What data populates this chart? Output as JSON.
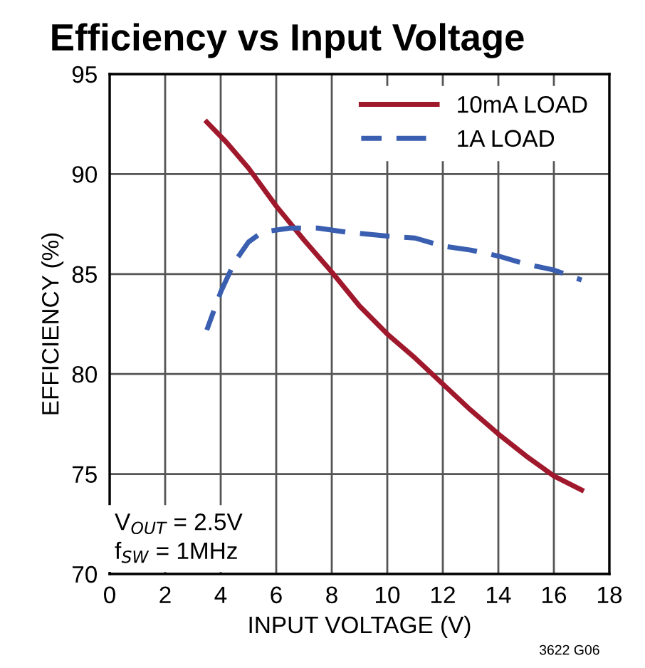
{
  "chart_data": {
    "type": "line",
    "title": "Efficiency vs Input Voltage",
    "xlabel": "INPUT VOLTAGE (V)",
    "ylabel": "EFFICIENCY (%)",
    "xlim": [
      0,
      18
    ],
    "xticks": [
      0,
      2,
      4,
      6,
      8,
      10,
      12,
      14,
      16,
      18
    ],
    "ylim": [
      70,
      95
    ],
    "yticks": [
      70,
      75,
      80,
      85,
      90,
      95
    ],
    "grid": true,
    "legend": "top right",
    "series": [
      {
        "name": "10mA LOAD",
        "color": "#a0182c",
        "line_style": "solid",
        "x": [
          3.5,
          4.2,
          5.0,
          6.0,
          7.0,
          8.0,
          9.0,
          10.0,
          11.0,
          12.0,
          13.0,
          14.0,
          15.0,
          16.0,
          17.0
        ],
        "values": [
          92.6,
          91.6,
          90.3,
          88.4,
          86.7,
          85.1,
          83.4,
          82.0,
          80.8,
          79.5,
          78.2,
          77.0,
          75.9,
          74.9,
          74.2
        ]
      },
      {
        "name": "1A LOAD",
        "color": "#3a5eb0",
        "line_style": "dashed",
        "x": [
          3.5,
          4.0,
          4.5,
          5.0,
          5.5,
          6.5,
          7.5,
          8.5,
          10.0,
          11.0,
          12.0,
          13.0,
          14.0,
          15.0,
          16.0,
          17.0
        ],
        "values": [
          82.2,
          84.1,
          85.6,
          86.6,
          87.1,
          87.3,
          87.3,
          87.1,
          86.9,
          86.8,
          86.4,
          86.2,
          85.9,
          85.5,
          85.2,
          84.7
        ]
      }
    ],
    "annotations": [
      "V$_{OUT}$ = 2.5V\nf$_{SW}$ = 1MHz",
      "3622 G06"
    ]
  }
}
